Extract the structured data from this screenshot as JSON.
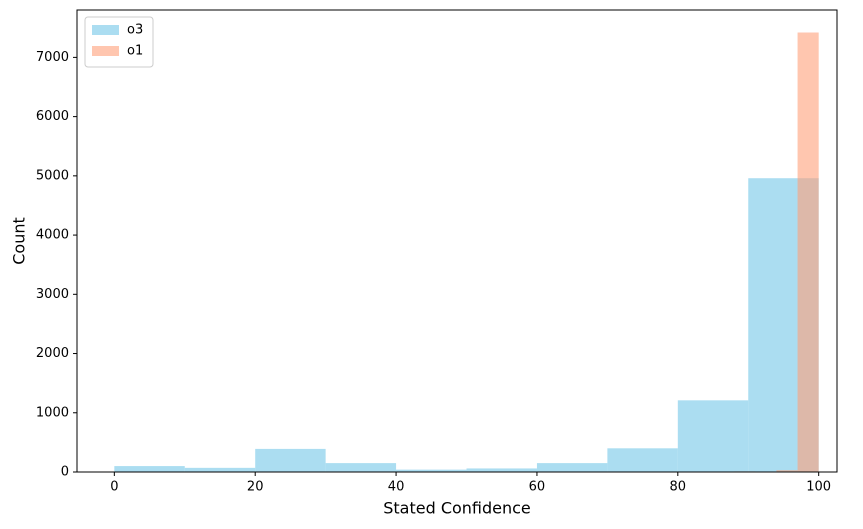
{
  "chart_data": {
    "type": "histogram",
    "x_label": "Stated Confidence",
    "y_label": "Count",
    "series": [
      {
        "name": "o3",
        "color": "#87ceeb",
        "opacity": 0.7,
        "bins": [
          0,
          10,
          20,
          30,
          40,
          50,
          60,
          70,
          80,
          90,
          100
        ],
        "values": [
          100,
          70,
          390,
          150,
          40,
          60,
          150,
          400,
          1210,
          4960
        ]
      },
      {
        "name": "o1",
        "color": "#ffa07a",
        "opacity": 0.6,
        "bins": [
          70,
          73,
          76,
          79,
          82,
          85,
          88,
          91,
          94,
          97,
          100
        ],
        "values": [
          0,
          0,
          0,
          0,
          0,
          0,
          10,
          0,
          30,
          7420
        ]
      }
    ],
    "xlim": [
      -5.3,
      102.6
    ],
    "ylim": [
      0,
      7800
    ],
    "xticks": [
      0,
      20,
      40,
      60,
      80,
      100
    ],
    "yticks": [
      0,
      1000,
      2000,
      3000,
      4000,
      5000,
      6000,
      7000
    ],
    "legend": "upper-left",
    "grid": false
  }
}
